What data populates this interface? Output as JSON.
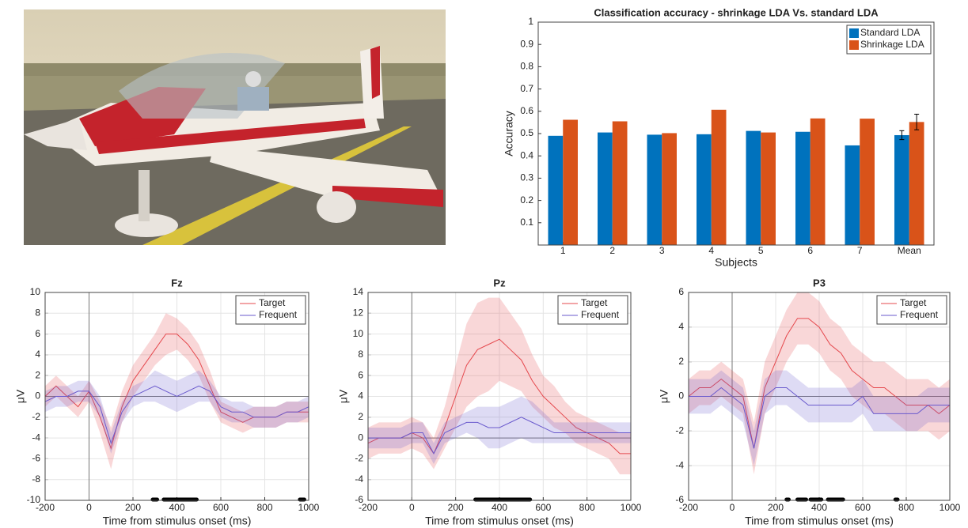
{
  "chart_data": [
    {
      "type": "bar",
      "title": "Classification accuracy - shrinkage LDA Vs. standard LDA",
      "xlabel": "Subjects",
      "ylabel": "Accuracy",
      "categories": [
        "1",
        "2",
        "3",
        "4",
        "5",
        "6",
        "7",
        "Mean"
      ],
      "series": [
        {
          "name": "Standard LDA",
          "color": "#0072bd",
          "values": [
            0.49,
            0.505,
            0.495,
            0.497,
            0.512,
            0.508,
            0.447,
            0.493
          ],
          "errors": [
            null,
            null,
            null,
            null,
            null,
            null,
            null,
            0.02
          ]
        },
        {
          "name": "Shrinkage LDA",
          "color": "#d95319",
          "values": [
            0.562,
            0.555,
            0.502,
            0.607,
            0.505,
            0.568,
            0.567,
            0.552
          ],
          "errors": [
            null,
            null,
            null,
            null,
            null,
            null,
            null,
            0.035
          ]
        }
      ],
      "ylim": [
        0,
        1
      ],
      "yticks": [
        0.1,
        0.2,
        0.3,
        0.4,
        0.5,
        0.6,
        0.7,
        0.8,
        0.9,
        1
      ],
      "grid": false,
      "legend": "upper-right"
    },
    {
      "type": "line",
      "title": "Fz",
      "xlabel": "Time from stimulus onset (ms)",
      "ylabel": "μV",
      "x": [
        -200,
        -150,
        -100,
        -50,
        0,
        50,
        100,
        150,
        200,
        250,
        300,
        350,
        400,
        450,
        500,
        550,
        600,
        650,
        700,
        750,
        800,
        850,
        900,
        950,
        1000
      ],
      "xlim": [
        -200,
        1000
      ],
      "xticks": [
        -200,
        0,
        200,
        400,
        600,
        800,
        1000
      ],
      "ylim": [
        -10,
        10
      ],
      "yticks": [
        -10,
        -8,
        -6,
        -4,
        -2,
        0,
        2,
        4,
        6,
        8,
        10
      ],
      "grid": true,
      "legend": "upper-right",
      "series": [
        {
          "name": "Target",
          "color": "#e5484d",
          "values": [
            0,
            1,
            0,
            -1,
            0.5,
            -2,
            -5,
            -1,
            1.5,
            3,
            4.5,
            6,
            6,
            5,
            3.5,
            1,
            -1.5,
            -2,
            -2.5,
            -2,
            -2,
            -2,
            -1.5,
            -1.5,
            -1.5
          ],
          "upper": [
            1,
            2,
            1,
            0,
            1.5,
            -0.5,
            -3,
            0.5,
            3,
            4.5,
            6,
            8,
            7.5,
            6.5,
            5,
            2.5,
            -0.5,
            -1,
            -1.5,
            -1,
            -1,
            -1,
            -0.5,
            -0.5,
            -0.5
          ],
          "lower": [
            -1,
            0,
            -1,
            -2,
            -0.5,
            -3.5,
            -7,
            -2.5,
            0,
            1.5,
            3,
            4,
            4.5,
            3.5,
            2,
            -0.5,
            -2.5,
            -3,
            -3.5,
            -3,
            -3,
            -3,
            -2.5,
            -2.5,
            -2.5
          ]
        },
        {
          "name": "Frequent",
          "color": "#6a5acd",
          "values": [
            -0.5,
            0,
            0,
            0.5,
            0.5,
            -1,
            -4.5,
            -1.5,
            0,
            0.5,
            1,
            0.5,
            0,
            0.5,
            1,
            0.5,
            -1,
            -1.5,
            -1.5,
            -2,
            -2,
            -2,
            -1.5,
            -1.5,
            -1
          ],
          "upper": [
            0.5,
            1,
            1,
            1.5,
            1.5,
            0,
            -3.5,
            -0.5,
            1,
            1.5,
            2.5,
            2,
            1.5,
            2,
            2.5,
            1.5,
            0,
            -0.5,
            -0.5,
            -1,
            -1,
            -1,
            -0.5,
            -0.5,
            0
          ],
          "lower": [
            -1.5,
            -1,
            -1,
            -0.5,
            -0.5,
            -2,
            -5.5,
            -2.5,
            -1,
            -0.5,
            -0.5,
            -1,
            -1.5,
            -1,
            -0.5,
            -0.5,
            -2,
            -2.5,
            -2.5,
            -3,
            -3,
            -3,
            -2.5,
            -2.5,
            -2
          ]
        }
      ],
      "significant_ranges": [
        [
          290,
          310
        ],
        [
          340,
          490
        ],
        [
          960,
          980
        ]
      ]
    },
    {
      "type": "line",
      "title": "Pz",
      "xlabel": "Time from stimulus onset (ms)",
      "ylabel": "μV",
      "x": [
        -200,
        -150,
        -100,
        -50,
        0,
        50,
        100,
        150,
        200,
        250,
        300,
        350,
        400,
        450,
        500,
        550,
        600,
        650,
        700,
        750,
        800,
        850,
        900,
        950,
        1000
      ],
      "xlim": [
        -200,
        1000
      ],
      "xticks": [
        -200,
        0,
        200,
        400,
        600,
        800,
        1000
      ],
      "ylim": [
        -6,
        14
      ],
      "yticks": [
        -6,
        -4,
        -2,
        0,
        2,
        4,
        6,
        8,
        10,
        12,
        14
      ],
      "grid": true,
      "legend": "upper-right",
      "series": [
        {
          "name": "Target",
          "color": "#e5484d",
          "values": [
            -0.5,
            0,
            0,
            0,
            0.5,
            0,
            -1.5,
            1,
            4,
            7,
            8.5,
            9,
            9.5,
            8.5,
            7.5,
            5.5,
            4,
            3,
            2,
            1,
            0.5,
            0,
            -0.5,
            -1.5,
            -1.5
          ],
          "upper": [
            1,
            1.5,
            1.5,
            1.5,
            2,
            1.5,
            0,
            3,
            7,
            11,
            13,
            13.5,
            13.5,
            12,
            10.5,
            8,
            6,
            5,
            3.5,
            2.5,
            2,
            1.5,
            1,
            0.5,
            0.5
          ],
          "lower": [
            -2,
            -1.5,
            -1.5,
            -1.5,
            -1,
            -1.5,
            -3,
            -1,
            1,
            3,
            4,
            4.5,
            5.5,
            5,
            4.5,
            3,
            2,
            1,
            0.5,
            -0.5,
            -1,
            -1.5,
            -2,
            -3.5,
            -3.5
          ]
        },
        {
          "name": "Frequent",
          "color": "#6a5acd",
          "values": [
            0,
            0,
            0,
            0,
            0.5,
            0.5,
            -1.5,
            0.5,
            1,
            1.5,
            1.5,
            1,
            1,
            1.5,
            2,
            1.5,
            1,
            0.5,
            0.5,
            0.5,
            0.5,
            0.5,
            0.5,
            0.5,
            0.5
          ],
          "upper": [
            1,
            1,
            1,
            1,
            1.5,
            1.5,
            -0.5,
            1.5,
            2,
            2.5,
            3,
            3,
            3,
            3.5,
            4,
            3.5,
            2.5,
            1.5,
            1.5,
            1.5,
            1.5,
            1.5,
            1.5,
            1.5,
            1.5
          ],
          "lower": [
            -1,
            -1,
            -1,
            -1,
            -0.5,
            -0.5,
            -2.5,
            -0.5,
            0,
            0.5,
            0,
            -1,
            -1,
            -0.5,
            0,
            -0.5,
            -0.5,
            -0.5,
            -0.5,
            -0.5,
            -0.5,
            -0.5,
            -0.5,
            -0.5,
            -0.5
          ]
        }
      ],
      "significant_ranges": [
        [
          290,
          540
        ]
      ]
    },
    {
      "type": "line",
      "title": "P3",
      "xlabel": "Time from stimulus onset (ms)",
      "ylabel": "μV",
      "x": [
        -200,
        -150,
        -100,
        -50,
        0,
        50,
        100,
        150,
        200,
        250,
        300,
        350,
        400,
        450,
        500,
        550,
        600,
        650,
        700,
        750,
        800,
        850,
        900,
        950,
        1000
      ],
      "xlim": [
        -200,
        1000
      ],
      "xticks": [
        -200,
        0,
        200,
        400,
        600,
        800,
        1000
      ],
      "ylim": [
        -6,
        6
      ],
      "yticks": [
        -6,
        -4,
        -2,
        0,
        2,
        4,
        6
      ],
      "grid": true,
      "legend": "upper-right",
      "series": [
        {
          "name": "Target",
          "color": "#e5484d",
          "values": [
            0,
            0.5,
            0.5,
            1,
            0.5,
            0,
            -3,
            0.5,
            2,
            3.5,
            4.5,
            4.5,
            4,
            3,
            2.5,
            1.5,
            1,
            0.5,
            0.5,
            0,
            -0.5,
            -0.5,
            -0.5,
            -1,
            -0.5
          ],
          "upper": [
            1,
            1.5,
            1.5,
            2,
            1.5,
            1,
            -1.5,
            2,
            3.5,
            5,
            6,
            6,
            5.5,
            4.5,
            4,
            3,
            2.5,
            2,
            2,
            1.5,
            1,
            1,
            1,
            0.5,
            1
          ],
          "lower": [
            -1,
            -0.5,
            -0.5,
            0,
            -0.5,
            -1,
            -4.5,
            -1,
            0.5,
            2,
            3,
            3,
            2.5,
            1.5,
            1,
            0,
            -0.5,
            -1,
            -1,
            -1.5,
            -2,
            -2,
            -2,
            -2.5,
            -2
          ]
        },
        {
          "name": "Frequent",
          "color": "#6a5acd",
          "values": [
            0,
            0,
            0,
            0.5,
            0,
            -0.5,
            -3,
            0,
            0.5,
            0.5,
            0,
            -0.5,
            -0.5,
            -0.5,
            -0.5,
            -0.5,
            0,
            -1,
            -1,
            -1,
            -1,
            -1,
            -0.5,
            -0.5,
            -0.5
          ],
          "upper": [
            1,
            1,
            1,
            1.5,
            1,
            0.5,
            -2,
            1,
            1.5,
            1.5,
            1,
            0.5,
            0.5,
            0.5,
            0.5,
            0.5,
            1,
            0,
            0,
            0,
            0,
            0,
            0.5,
            0.5,
            0.5
          ],
          "lower": [
            -1,
            -1,
            -1,
            -0.5,
            -1,
            -1.5,
            -4,
            -1,
            -0.5,
            -0.5,
            -1,
            -1.5,
            -1.5,
            -1.5,
            -1.5,
            -1.5,
            -1,
            -2,
            -2,
            -2,
            -2,
            -2,
            -1.5,
            -1.5,
            -1.5
          ]
        }
      ],
      "significant_ranges": [
        [
          250,
          260
        ],
        [
          300,
          340
        ],
        [
          360,
          410
        ],
        [
          440,
          510
        ],
        [
          750,
          760
        ]
      ]
    }
  ]
}
